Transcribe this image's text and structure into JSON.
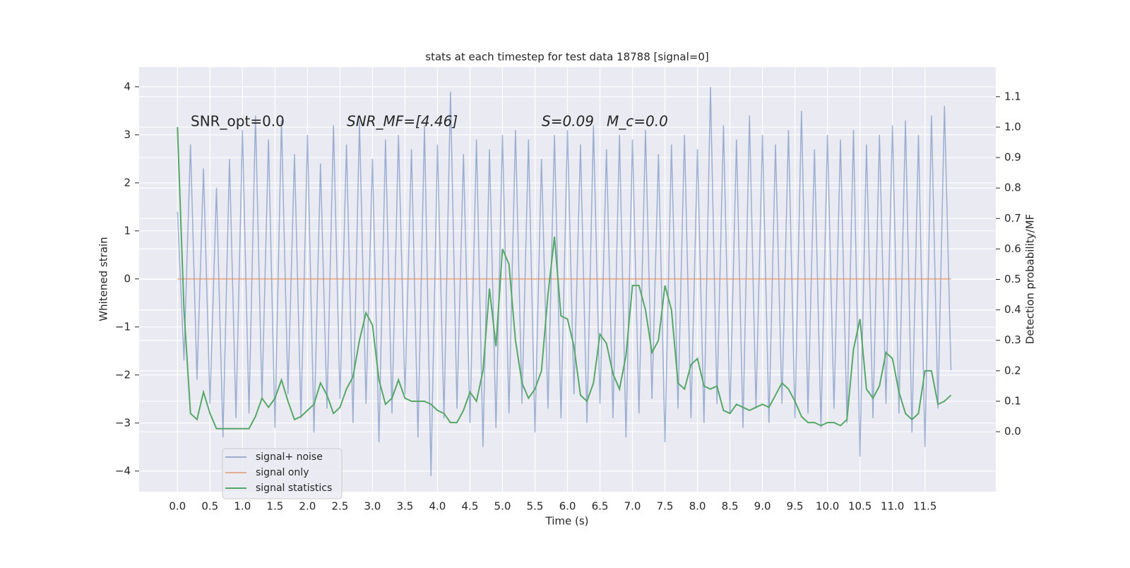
{
  "chart_data": {
    "type": "line",
    "title": "stats at each timestep for test data 18788 [signal=0]",
    "xlabel": "Time (s)",
    "ylabel": "Whitened strain",
    "y2label": "Detection probability/MF",
    "annotations": [
      "SNR_opt=0.0",
      "SNR_MF=[4.46]",
      "S=0.09",
      "M_c=0.0"
    ],
    "grid": true,
    "legend": "lower left",
    "xlim": [
      -0.59,
      12.59
    ],
    "ylim": [
      -4.43,
      4.41
    ],
    "y2lim": [
      -0.197,
      1.197
    ],
    "xticks": [
      {
        "value": 0,
        "label": "0.0"
      },
      {
        "value": 0.5,
        "label": "0.5"
      },
      {
        "value": 1,
        "label": "1.0"
      },
      {
        "value": 1.5,
        "label": "1.5"
      },
      {
        "value": 2,
        "label": "2.0"
      },
      {
        "value": 2.5,
        "label": "2.5"
      },
      {
        "value": 3,
        "label": "3.0"
      },
      {
        "value": 3.5,
        "label": "3.5"
      },
      {
        "value": 4,
        "label": "4.0"
      },
      {
        "value": 4.5,
        "label": "4.5"
      },
      {
        "value": 5,
        "label": "5.0"
      },
      {
        "value": 5.5,
        "label": "5.5"
      },
      {
        "value": 6,
        "label": "6.0"
      },
      {
        "value": 6.5,
        "label": "6.5"
      },
      {
        "value": 7,
        "label": "7.0"
      },
      {
        "value": 7.5,
        "label": "7.5"
      },
      {
        "value": 8,
        "label": "8.0"
      },
      {
        "value": 8.5,
        "label": "8.5"
      },
      {
        "value": 9,
        "label": "9.0"
      },
      {
        "value": 9.5,
        "label": "9.5"
      },
      {
        "value": 10,
        "label": "10.0"
      },
      {
        "value": 10.5,
        "label": "10.5"
      },
      {
        "value": 11,
        "label": "11.0"
      },
      {
        "value": 11.5,
        "label": "11.5"
      }
    ],
    "yticks": [
      {
        "value": -4,
        "label": "−4"
      },
      {
        "value": -3,
        "label": "−3"
      },
      {
        "value": -2,
        "label": "−2"
      },
      {
        "value": -1,
        "label": "−1"
      },
      0,
      1,
      2,
      3,
      4
    ],
    "y2ticks": [
      {
        "value": 0,
        "label": "0.0"
      },
      {
        "value": 0.1,
        "label": "0.1"
      },
      {
        "value": 0.2,
        "label": "0.2"
      },
      {
        "value": 0.3,
        "label": "0.3"
      },
      {
        "value": 0.4,
        "label": "0.4"
      },
      {
        "value": 0.5,
        "label": "0.5"
      },
      {
        "value": 0.6,
        "label": "0.6"
      },
      {
        "value": 0.7,
        "label": "0.7"
      },
      {
        "value": 0.8,
        "label": "0.8"
      },
      {
        "value": 0.9,
        "label": "0.9"
      },
      {
        "value": 1,
        "label": "1.0"
      },
      {
        "value": 1.1,
        "label": "1.1"
      }
    ],
    "x": [
      0,
      0.1,
      0.2,
      0.3,
      0.4,
      0.5,
      0.6,
      0.7,
      0.8,
      0.9,
      1,
      1.1,
      1.2,
      1.3,
      1.4,
      1.5,
      1.6,
      1.7,
      1.8,
      1.9,
      2,
      2.1,
      2.2,
      2.3,
      2.4,
      2.5,
      2.6,
      2.7,
      2.8,
      2.9,
      3,
      3.1,
      3.2,
      3.3,
      3.4,
      3.5,
      3.6,
      3.7,
      3.8,
      3.9,
      4,
      4.1,
      4.2,
      4.3,
      4.4,
      4.5,
      4.6,
      4.7,
      4.8,
      4.9,
      5,
      5.1,
      5.2,
      5.3,
      5.4,
      5.5,
      5.6,
      5.7,
      5.8,
      5.9,
      6,
      6.1,
      6.2,
      6.3,
      6.4,
      6.5,
      6.6,
      6.7,
      6.8,
      6.9,
      7,
      7.1,
      7.2,
      7.3,
      7.4,
      7.5,
      7.6,
      7.7,
      7.8,
      7.9,
      8,
      8.1,
      8.2,
      8.3,
      8.4,
      8.5,
      8.6,
      8.7,
      8.8,
      8.9,
      9,
      9.1,
      9.2,
      9.3,
      9.4,
      9.5,
      9.6,
      9.7,
      9.8,
      9.9,
      10,
      10.1,
      10.2,
      10.3,
      10.4,
      10.5,
      10.6,
      10.7,
      10.8,
      10.9,
      11,
      11.1,
      11.2,
      11.3,
      11.4,
      11.5,
      11.6,
      11.7,
      11.8,
      11.9
    ],
    "series": [
      {
        "name": "signal+ noise",
        "color": "#4c72b0",
        "opacity": 0.5,
        "values": [
          1.4,
          -1.7,
          2.8,
          -2.1,
          2.3,
          -2.6,
          1.9,
          -3.3,
          2.5,
          -2.9,
          3.1,
          -2.8,
          3.4,
          -2.5,
          2.9,
          -3.1,
          3.3,
          -2.4,
          2.6,
          -2.9,
          3.0,
          -3.2,
          2.4,
          -2.7,
          3.2,
          -2.5,
          2.8,
          -3.0,
          3.3,
          -2.6,
          2.5,
          -3.4,
          2.9,
          -2.8,
          3.0,
          -2.4,
          2.7,
          -3.3,
          3.2,
          -4.1,
          2.8,
          -2.9,
          3.9,
          -2.7,
          2.6,
          -3.0,
          2.9,
          -3.5,
          2.7,
          -3.1,
          3.0,
          -2.8,
          3.1,
          -2.6,
          2.9,
          -3.2,
          2.5,
          -2.7,
          3.0,
          -2.9,
          3.1,
          -2.4,
          2.8,
          -3.0,
          3.2,
          -2.6,
          2.7,
          -2.9,
          3.0,
          -3.3,
          2.9,
          -2.8,
          3.1,
          -2.5,
          2.6,
          -3.4,
          2.8,
          -2.7,
          3.0,
          -2.9,
          2.7,
          -3.0,
          4.0,
          -2.6,
          3.2,
          -2.8,
          2.9,
          -3.1,
          3.4,
          -2.7,
          3.0,
          -3.0,
          2.8,
          -2.6,
          3.1,
          -2.9,
          3.5,
          -2.8,
          2.7,
          -3.1,
          3.0,
          -2.7,
          2.9,
          -3.0,
          3.1,
          -3.7,
          2.8,
          -2.9,
          3.0,
          -2.6,
          3.2,
          -2.8,
          3.3,
          -3.2,
          3.0,
          -3.5,
          3.4,
          -2.7,
          3.6,
          -1.9
        ]
      },
      {
        "name": "signal only",
        "color": "#dd8452",
        "opacity": 0.6,
        "values": [
          0,
          0,
          0,
          0,
          0,
          0,
          0,
          0,
          0,
          0,
          0,
          0,
          0,
          0,
          0,
          0,
          0,
          0,
          0,
          0,
          0,
          0,
          0,
          0,
          0,
          0,
          0,
          0,
          0,
          0,
          0,
          0,
          0,
          0,
          0,
          0,
          0,
          0,
          0,
          0,
          0,
          0,
          0,
          0,
          0,
          0,
          0,
          0,
          0,
          0,
          0,
          0,
          0,
          0,
          0,
          0,
          0,
          0,
          0,
          0,
          0,
          0,
          0,
          0,
          0,
          0,
          0,
          0,
          0,
          0,
          0,
          0,
          0,
          0,
          0,
          0,
          0,
          0,
          0,
          0,
          0,
          0,
          0,
          0,
          0,
          0,
          0,
          0,
          0,
          0,
          0,
          0,
          0,
          0,
          0,
          0,
          0,
          0,
          0,
          0,
          0,
          0,
          0,
          0,
          0,
          0,
          0,
          0,
          0,
          0,
          0,
          0,
          0,
          0,
          0,
          0,
          0,
          0,
          0,
          0
        ]
      },
      {
        "name": "signal statistics",
        "color": "#55a868",
        "opacity": 1,
        "axis": "y2",
        "values": [
          1.0,
          0.4,
          0.06,
          0.04,
          0.13,
          0.06,
          0.01,
          0.01,
          0.01,
          0.01,
          0.01,
          0.01,
          0.05,
          0.11,
          0.08,
          0.11,
          0.17,
          0.1,
          0.04,
          0.05,
          0.07,
          0.09,
          0.16,
          0.12,
          0.06,
          0.08,
          0.14,
          0.18,
          0.3,
          0.39,
          0.35,
          0.17,
          0.09,
          0.11,
          0.17,
          0.11,
          0.1,
          0.1,
          0.1,
          0.09,
          0.07,
          0.06,
          0.03,
          0.03,
          0.07,
          0.13,
          0.1,
          0.2,
          0.47,
          0.28,
          0.6,
          0.55,
          0.3,
          0.16,
          0.11,
          0.14,
          0.2,
          0.45,
          0.64,
          0.38,
          0.37,
          0.28,
          0.12,
          0.1,
          0.16,
          0.32,
          0.29,
          0.19,
          0.14,
          0.25,
          0.48,
          0.48,
          0.4,
          0.26,
          0.3,
          0.48,
          0.4,
          0.16,
          0.14,
          0.22,
          0.24,
          0.15,
          0.14,
          0.15,
          0.07,
          0.06,
          0.09,
          0.08,
          0.07,
          0.08,
          0.09,
          0.08,
          0.12,
          0.16,
          0.14,
          0.1,
          0.05,
          0.03,
          0.03,
          0.02,
          0.03,
          0.03,
          0.02,
          0.04,
          0.27,
          0.37,
          0.14,
          0.11,
          0.15,
          0.26,
          0.24,
          0.13,
          0.06,
          0.04,
          0.06,
          0.2,
          0.2,
          0.09,
          0.1,
          0.12
        ]
      }
    ]
  }
}
